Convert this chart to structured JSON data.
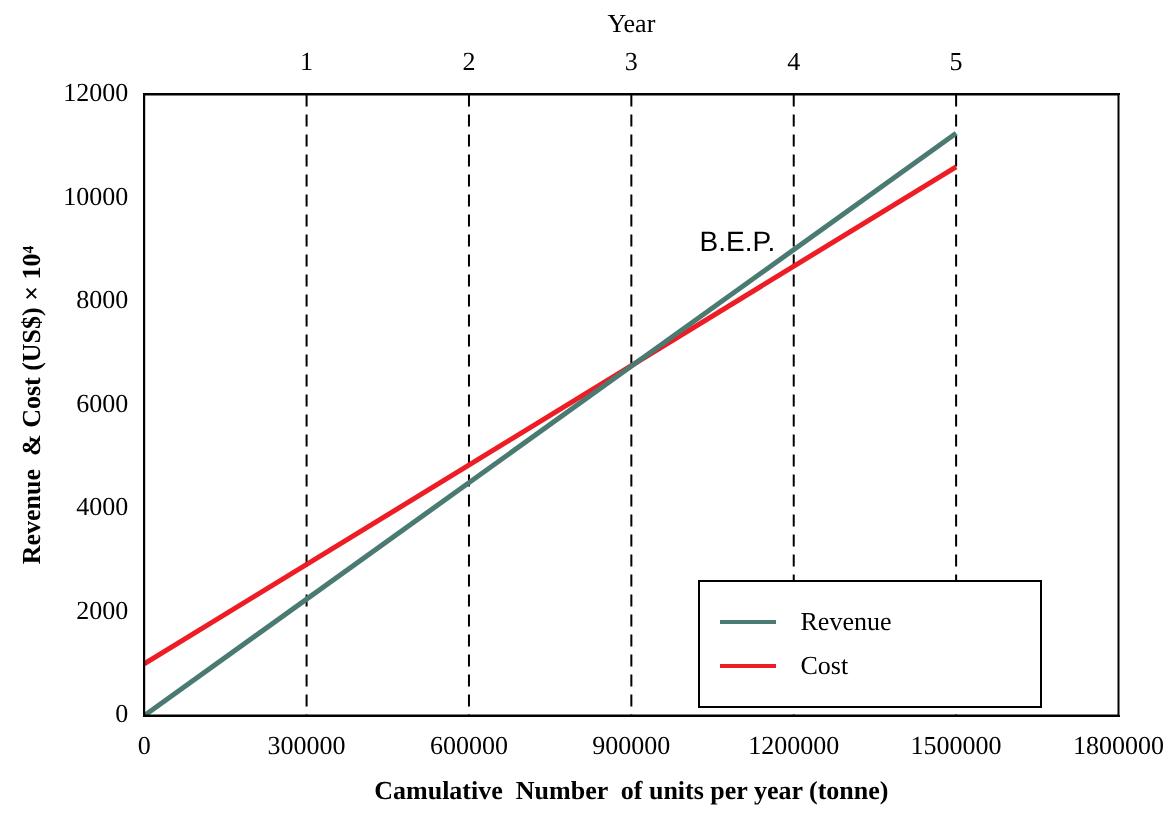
{
  "chart_data": {
    "type": "line",
    "xlabel": "Camulative  Number  of units per year (tonne)",
    "ylabel": "Revenue  & Cost (US$) × 10⁴",
    "x2label": "Year",
    "xlim": [
      0,
      1800000
    ],
    "xticks": [
      0,
      300000,
      600000,
      900000,
      1200000,
      1500000,
      1800000
    ],
    "ylim": [
      0,
      12000
    ],
    "yticks": [
      0,
      2000,
      4000,
      6000,
      8000,
      10000,
      12000
    ],
    "x2lim": [
      0,
      6
    ],
    "x2ticks": [
      1,
      2,
      3,
      4,
      5
    ],
    "x": [
      0,
      1500000
    ],
    "series": [
      {
        "name": "Revenue",
        "color": "#4a7a72",
        "values": [
          0,
          11250
        ]
      },
      {
        "name": "Cost",
        "color": "#ee1c24",
        "values": [
          1000,
          10600
        ]
      }
    ],
    "ref_lines": [
      {
        "axis": "x",
        "value": 300000,
        "line_style": "dashed",
        "color": "#000000"
      },
      {
        "axis": "x",
        "value": 600000,
        "line_style": "dashed",
        "color": "#000000"
      },
      {
        "axis": "x",
        "value": 900000,
        "line_style": "dashed",
        "color": "#000000"
      },
      {
        "axis": "x",
        "value": 1200000,
        "line_style": "dashed",
        "color": "#000000"
      },
      {
        "axis": "x",
        "value": 1500000,
        "line_style": "dashed",
        "color": "#000000"
      }
    ],
    "annotations": [
      "B.E.P."
    ],
    "legend": "bottom right",
    "marker": "none",
    "line_style": "solid",
    "grid": false
  }
}
